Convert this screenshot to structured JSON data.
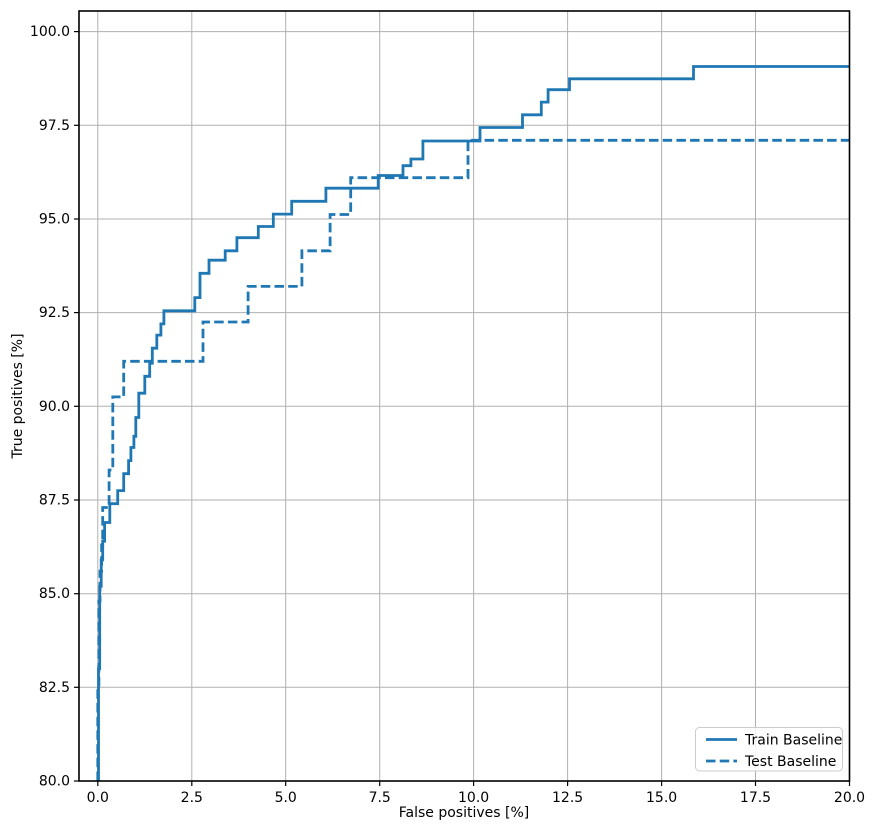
{
  "figure": {
    "background": "#ffffff"
  },
  "chart_data": {
    "type": "line",
    "subtype": "step-roc",
    "title": "",
    "xlabel": "False positives [%]",
    "ylabel": "True positives [%]",
    "xlim": [
      -0.5,
      20.0
    ],
    "ylim": [
      80.0,
      100.55
    ],
    "grid": true,
    "grid_color": "#b0b0b0",
    "line_color": "#1f77b4",
    "legend_position": "lower right",
    "x_ticks": [
      0.0,
      2.5,
      5.0,
      7.5,
      10.0,
      12.5,
      15.0,
      17.5,
      20.0
    ],
    "x_tick_labels": [
      "0.0",
      "2.5",
      "5.0",
      "7.5",
      "10.0",
      "12.5",
      "15.0",
      "17.5",
      "20.0"
    ],
    "y_ticks": [
      80.0,
      82.5,
      85.0,
      87.5,
      90.0,
      92.5,
      95.0,
      97.5,
      100.0
    ],
    "y_tick_labels": [
      "80.0",
      "82.5",
      "85.0",
      "87.5",
      "90.0",
      "92.5",
      "95.0",
      "97.5",
      "100.0"
    ],
    "series": [
      {
        "name": "Train Baseline",
        "style": "solid",
        "points": [
          [
            0.02,
            80.0
          ],
          [
            0.02,
            83.0
          ],
          [
            0.05,
            83.0
          ],
          [
            0.05,
            85.2
          ],
          [
            0.09,
            85.2
          ],
          [
            0.09,
            85.9
          ],
          [
            0.13,
            85.9
          ],
          [
            0.13,
            86.4
          ],
          [
            0.18,
            86.4
          ],
          [
            0.18,
            86.9
          ],
          [
            0.32,
            86.9
          ],
          [
            0.32,
            87.4
          ],
          [
            0.53,
            87.4
          ],
          [
            0.53,
            87.75
          ],
          [
            0.69,
            87.75
          ],
          [
            0.69,
            88.2
          ],
          [
            0.82,
            88.2
          ],
          [
            0.82,
            88.55
          ],
          [
            0.88,
            88.55
          ],
          [
            0.88,
            88.9
          ],
          [
            0.96,
            88.9
          ],
          [
            0.96,
            89.2
          ],
          [
            1.01,
            89.2
          ],
          [
            1.01,
            89.7
          ],
          [
            1.09,
            89.7
          ],
          [
            1.09,
            90.35
          ],
          [
            1.25,
            90.35
          ],
          [
            1.25,
            90.8
          ],
          [
            1.38,
            90.8
          ],
          [
            1.38,
            91.15
          ],
          [
            1.45,
            91.15
          ],
          [
            1.45,
            91.55
          ],
          [
            1.57,
            91.55
          ],
          [
            1.57,
            91.9
          ],
          [
            1.68,
            91.9
          ],
          [
            1.68,
            92.2
          ],
          [
            1.76,
            92.2
          ],
          [
            1.76,
            92.55
          ],
          [
            2.58,
            92.55
          ],
          [
            2.58,
            92.9
          ],
          [
            2.72,
            92.9
          ],
          [
            2.72,
            93.55
          ],
          [
            2.96,
            93.55
          ],
          [
            2.96,
            93.9
          ],
          [
            3.39,
            93.9
          ],
          [
            3.39,
            94.15
          ],
          [
            3.7,
            94.15
          ],
          [
            3.7,
            94.5
          ],
          [
            4.27,
            94.5
          ],
          [
            4.27,
            94.8
          ],
          [
            4.67,
            94.8
          ],
          [
            4.67,
            95.13
          ],
          [
            5.16,
            95.13
          ],
          [
            5.16,
            95.47
          ],
          [
            6.07,
            95.47
          ],
          [
            6.07,
            95.82
          ],
          [
            7.46,
            95.82
          ],
          [
            7.46,
            96.16
          ],
          [
            8.12,
            96.16
          ],
          [
            8.12,
            96.42
          ],
          [
            8.33,
            96.42
          ],
          [
            8.33,
            96.6
          ],
          [
            8.65,
            96.6
          ],
          [
            8.65,
            97.08
          ],
          [
            10.17,
            97.08
          ],
          [
            10.17,
            97.44
          ],
          [
            11.3,
            97.44
          ],
          [
            11.3,
            97.78
          ],
          [
            11.8,
            97.78
          ],
          [
            11.8,
            98.12
          ],
          [
            11.98,
            98.12
          ],
          [
            11.98,
            98.45
          ],
          [
            12.55,
            98.45
          ],
          [
            12.55,
            98.74
          ],
          [
            15.85,
            98.74
          ],
          [
            15.85,
            99.07
          ],
          [
            20.0,
            99.07
          ]
        ]
      },
      {
        "name": "Test Baseline",
        "style": "dashed",
        "points": [
          [
            0.0,
            80.0
          ],
          [
            0.0,
            82.5
          ],
          [
            0.03,
            82.5
          ],
          [
            0.03,
            84.8
          ],
          [
            0.06,
            84.8
          ],
          [
            0.06,
            85.6
          ],
          [
            0.1,
            85.6
          ],
          [
            0.1,
            86.3
          ],
          [
            0.13,
            86.3
          ],
          [
            0.13,
            87.3
          ],
          [
            0.3,
            87.3
          ],
          [
            0.3,
            88.3
          ],
          [
            0.4,
            88.3
          ],
          [
            0.4,
            90.25
          ],
          [
            0.69,
            90.25
          ],
          [
            0.69,
            91.2
          ],
          [
            2.8,
            91.2
          ],
          [
            2.8,
            92.25
          ],
          [
            4.0,
            92.25
          ],
          [
            4.0,
            93.2
          ],
          [
            5.43,
            93.2
          ],
          [
            5.43,
            94.15
          ],
          [
            6.18,
            94.15
          ],
          [
            6.18,
            95.12
          ],
          [
            6.73,
            95.12
          ],
          [
            6.73,
            96.1
          ],
          [
            9.85,
            96.1
          ],
          [
            9.85,
            97.1
          ],
          [
            20.0,
            97.1
          ]
        ]
      }
    ]
  }
}
